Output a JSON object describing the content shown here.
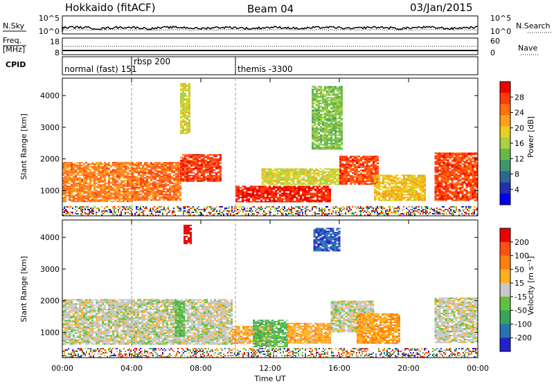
{
  "header": {
    "station": "Hokkaido (fitACF)",
    "beam": "Beam 04",
    "date": "03/Jan/2015"
  },
  "strips": {
    "nsky_label": "N.Sky",
    "nsky_ticks": [
      "10^5",
      "10^0"
    ],
    "nsearch_label": "N.Search",
    "nsearch_ticks": [
      "10^5",
      "10^0"
    ],
    "freq_label": "Freq.",
    "freq_unit": "[MHz]",
    "freq_ticks": [
      "18",
      "8"
    ],
    "nave_label": "Nave",
    "nave_ticks": [
      "60",
      "0"
    ],
    "cpid_label": "CPID"
  },
  "modes": [
    {
      "label": "normal (fast)  151",
      "start_hour": 0
    },
    {
      "label": "rbsp  200",
      "start_hour": 4
    },
    {
      "label": "themis -3300",
      "start_hour": 10
    }
  ],
  "x_axis": {
    "label": "Time UT",
    "range_hours": [
      0,
      24
    ],
    "tick_labels": [
      "00:00",
      "04:00",
      "08:00",
      "12:00",
      "16:00",
      "20:00",
      "00:00"
    ]
  },
  "y_axis": {
    "label": "Slant Range [km]",
    "range_km": [
      200,
      4550
    ],
    "tick_labels": [
      "1000",
      "2000",
      "3000",
      "4000"
    ]
  },
  "power_bar": {
    "label": "Power [dB]",
    "tick_labels": [
      "4",
      "8",
      "12",
      "16",
      "20",
      "24",
      "28"
    ],
    "colors": [
      "#0000f0",
      "#2030b0",
      "#2e6890",
      "#3f9570",
      "#66b84a",
      "#a8d040",
      "#e8d020",
      "#ffa01a",
      "#ff7010",
      "#ff3a08",
      "#ee0000"
    ]
  },
  "velocity_bar": {
    "label": "Velocity [m s⁻¹]",
    "tick_labels": [
      "200",
      "100",
      "50",
      "15",
      "-15",
      "-50",
      "-100",
      "-200"
    ],
    "colors": [
      "#2222cc",
      "#2a72b0",
      "#3aa25a",
      "#60c040",
      "#c8c8c8",
      "#ffb020",
      "#ff8010",
      "#ff5010",
      "#ee0000"
    ]
  },
  "chart_data": [
    {
      "type": "heatmap",
      "panel": "power",
      "x_unit": "hours UT",
      "y_unit": "km",
      "value_unit": "dB",
      "xlim": [
        0,
        24
      ],
      "ylim": [
        200,
        4550
      ],
      "zlim": [
        0,
        32
      ],
      "regions": [
        {
          "x": [
            0.0,
            4.0
          ],
          "y": [
            650,
            1900
          ],
          "z": 24
        },
        {
          "x": [
            4.0,
            6.8
          ],
          "y": [
            700,
            1900
          ],
          "z": 25
        },
        {
          "x": [
            6.8,
            9.2
          ],
          "y": [
            1300,
            2150
          ],
          "z": 28
        },
        {
          "x": [
            10.0,
            15.5
          ],
          "y": [
            650,
            1150
          ],
          "z": 29
        },
        {
          "x": [
            11.5,
            16.0
          ],
          "y": [
            1200,
            1700
          ],
          "z": 18
        },
        {
          "x": [
            16.0,
            18.2
          ],
          "y": [
            1200,
            2100
          ],
          "z": 27
        },
        {
          "x": [
            18.0,
            21.0
          ],
          "y": [
            700,
            1500
          ],
          "z": 20
        },
        {
          "x": [
            21.5,
            24.0
          ],
          "y": [
            700,
            2200
          ],
          "z": 27
        },
        {
          "x": [
            14.4,
            16.2
          ],
          "y": [
            2300,
            4300
          ],
          "z": 14
        },
        {
          "x": [
            6.8,
            7.4
          ],
          "y": [
            2800,
            4400
          ],
          "z": 18
        }
      ]
    },
    {
      "type": "heatmap",
      "panel": "velocity",
      "x_unit": "hours UT",
      "y_unit": "km",
      "value_unit": "m/s",
      "xlim": [
        0,
        24
      ],
      "ylim": [
        200,
        4550
      ],
      "zlim": [
        -200,
        200
      ],
      "regions": [
        {
          "x": [
            0.0,
            9.8
          ],
          "y": [
            650,
            2050
          ],
          "z": 0
        },
        {
          "x": [
            6.5,
            7.0
          ],
          "y": [
            900,
            2000
          ],
          "z": -50
        },
        {
          "x": [
            9.8,
            12.0
          ],
          "y": [
            650,
            1200
          ],
          "z": 50
        },
        {
          "x": [
            11.0,
            13.0
          ],
          "y": [
            550,
            1400
          ],
          "z": -50
        },
        {
          "x": [
            13.0,
            15.5
          ],
          "y": [
            650,
            1300
          ],
          "z": 50
        },
        {
          "x": [
            15.5,
            18.0
          ],
          "y": [
            1000,
            2000
          ],
          "z": 0
        },
        {
          "x": [
            17.0,
            19.5
          ],
          "y": [
            650,
            1600
          ],
          "z": 60
        },
        {
          "x": [
            21.5,
            24.0
          ],
          "y": [
            700,
            2100
          ],
          "z": 0
        },
        {
          "x": [
            7.0,
            7.4
          ],
          "y": [
            3800,
            4400
          ],
          "z": 200
        },
        {
          "x": [
            14.5,
            16.0
          ],
          "y": [
            3600,
            4300
          ],
          "z": -150
        }
      ]
    }
  ]
}
